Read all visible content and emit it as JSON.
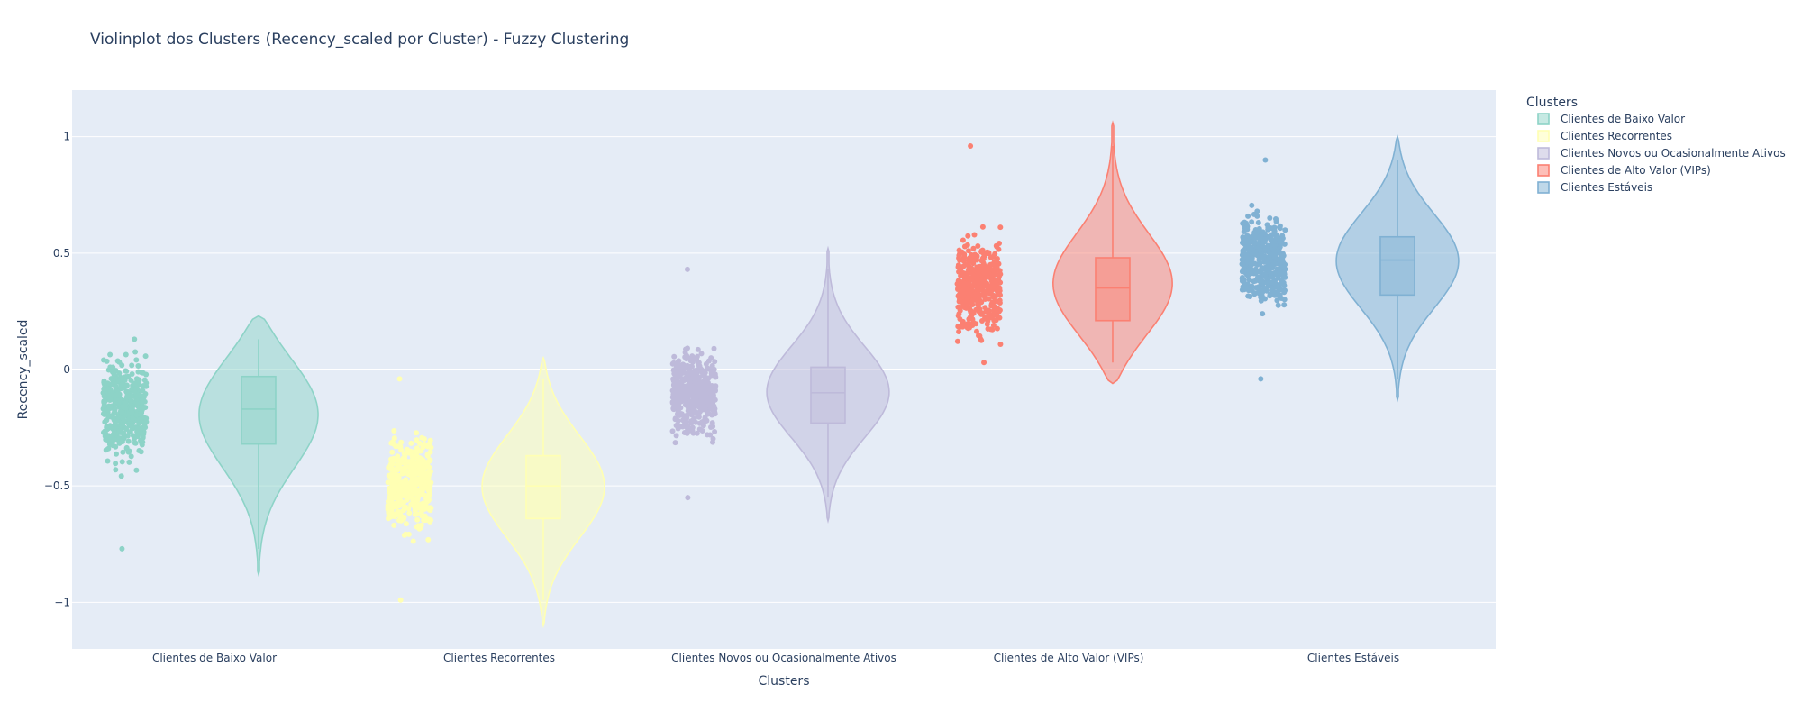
{
  "chart_data": {
    "type": "violin",
    "title": "Violinplot dos Clusters (Recency_scaled por Cluster) - Fuzzy Clustering",
    "xlabel": "Clusters",
    "ylabel": "Recency_scaled",
    "ylim": [
      -1.2,
      1.2
    ],
    "yticks": [
      -1,
      -0.5,
      0,
      0.5,
      1
    ],
    "ytick_labels": [
      "−1",
      "−0.5",
      "0",
      "0.5",
      "1"
    ],
    "grid": true,
    "plot_bgcolor": "#e5ecf6",
    "legend": {
      "title": "Clusters",
      "position": "top-right, outside plot"
    },
    "categories": [
      "Clientes de Baixo Valor",
      "Clientes Recorrentes",
      "Clientes Novos ou Ocasionalmente Ativos",
      "Clientes de Alto Valor (VIPs)",
      "Clientes Estáveis"
    ],
    "series": [
      {
        "name": "Clientes de Baixo Valor",
        "color": "#8dd3c7",
        "points_range": [
          -0.77,
          0.13
        ],
        "violin_range": [
          -0.88,
          0.23
        ],
        "box": {
          "q1": -0.32,
          "median": -0.17,
          "q3": -0.03,
          "whisker_low": -0.77,
          "whisker_high": 0.13
        }
      },
      {
        "name": "Clientes Recorrentes",
        "color": "#ffffb3",
        "points_range": [
          -0.99,
          -0.04
        ],
        "violin_range": [
          -1.1,
          0.05
        ],
        "box": {
          "q1": -0.64,
          "median": -0.5,
          "q3": -0.37,
          "whisker_low": -0.99,
          "whisker_high": -0.04
        }
      },
      {
        "name": "Clientes Novos ou Ocasionalmente Ativos",
        "color": "#bebada",
        "points_range": [
          -0.55,
          0.43
        ],
        "violin_range": [
          -0.65,
          0.52
        ],
        "box": {
          "q1": -0.23,
          "median": -0.1,
          "q3": 0.01,
          "whisker_low": -0.55,
          "whisker_high": 0.43
        }
      },
      {
        "name": "Clientes de Alto Valor (VIPs)",
        "color": "#fb8072",
        "points_range": [
          0.03,
          0.96
        ],
        "violin_range": [
          -0.06,
          1.06
        ],
        "box": {
          "q1": 0.21,
          "median": 0.35,
          "q3": 0.48,
          "whisker_low": 0.03,
          "whisker_high": 0.96
        }
      },
      {
        "name": "Clientes Estáveis",
        "color": "#80b1d3",
        "points_range": [
          -0.04,
          0.9
        ],
        "violin_range": [
          -0.13,
          1.0
        ],
        "box": {
          "q1": 0.32,
          "median": 0.47,
          "q3": 0.57,
          "whisker_low": -0.04,
          "whisker_high": 0.9
        }
      }
    ]
  }
}
